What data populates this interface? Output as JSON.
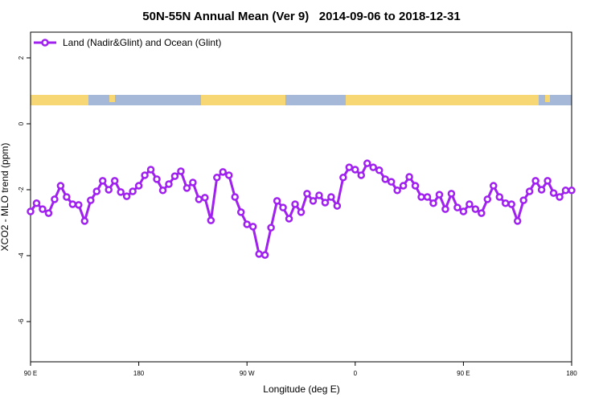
{
  "chart_data": {
    "type": "line",
    "title": "50N-55N Annual Mean (Ver 9)   2014-09-06 to 2018-12-31",
    "x_label": "Longitude (deg E)",
    "y_label": "XCO2 - MLO trend (ppm)",
    "xlim": [
      90,
      540
    ],
    "ylim": [
      -7.22,
      2.78
    ],
    "xticks": [
      {
        "value": 90,
        "label": "90 E"
      },
      {
        "value": 180,
        "label": "180"
      },
      {
        "value": 270,
        "label": "90 W"
      },
      {
        "value": 360,
        "label": "0"
      },
      {
        "value": 450,
        "label": "90 E"
      },
      {
        "value": 540,
        "label": "180"
      }
    ],
    "yticks": [
      2,
      0,
      -2,
      -4,
      -6
    ],
    "legend_position": "top-left",
    "x": [
      90,
      95,
      100,
      105,
      110,
      115,
      120,
      125,
      130,
      135,
      140,
      145,
      150,
      155,
      160,
      165,
      170,
      175,
      180,
      185,
      190,
      195,
      200,
      205,
      210,
      215,
      220,
      225,
      230,
      235,
      240,
      245,
      250,
      255,
      260,
      265,
      270,
      275,
      280,
      285,
      290,
      295,
      300,
      305,
      310,
      315,
      320,
      325,
      330,
      335,
      340,
      345,
      350,
      355,
      360,
      365,
      370,
      375,
      380,
      385,
      390,
      395,
      400,
      405,
      410,
      415,
      420,
      425,
      430,
      435,
      440,
      445,
      450,
      455,
      460,
      465,
      470,
      475,
      480,
      485,
      490,
      495,
      500,
      505,
      510,
      515,
      520,
      525,
      530,
      535,
      540
    ],
    "series": [
      {
        "name": "Land (Nadir&Glint) and Ocean (Glint)",
        "color": "#a020f0",
        "values": [
          -2.66,
          -2.41,
          -2.59,
          -2.71,
          -2.29,
          -1.88,
          -2.22,
          -2.44,
          -2.46,
          -2.95,
          -2.32,
          -2.05,
          -1.73,
          -2.0,
          -1.73,
          -2.07,
          -2.2,
          -2.05,
          -1.88,
          -1.56,
          -1.39,
          -1.68,
          -2.02,
          -1.83,
          -1.59,
          -1.44,
          -1.95,
          -1.78,
          -2.29,
          -2.24,
          -2.93,
          -1.63,
          -1.46,
          -1.56,
          -2.22,
          -2.68,
          -3.05,
          -3.12,
          -3.95,
          -3.98,
          -3.15,
          -2.34,
          -2.54,
          -2.88,
          -2.44,
          -2.68,
          -2.12,
          -2.34,
          -2.17,
          -2.39,
          -2.22,
          -2.49,
          -1.63,
          -1.32,
          -1.39,
          -1.56,
          -1.2,
          -1.32,
          -1.41,
          -1.68,
          -1.76,
          -2.02,
          -1.88,
          -1.61,
          -1.88,
          -2.22,
          -2.22,
          -2.41,
          -2.15,
          -2.59,
          -2.12,
          -2.54,
          -2.66,
          -2.44,
          -2.59,
          -2.71,
          -2.29,
          -1.88,
          -2.22,
          -2.41,
          -2.44,
          -2.95,
          -2.32,
          -2.05,
          -1.73,
          -2.0,
          -1.73,
          -2.1,
          -2.22,
          -2.02,
          -2.02
        ]
      }
    ]
  }
}
